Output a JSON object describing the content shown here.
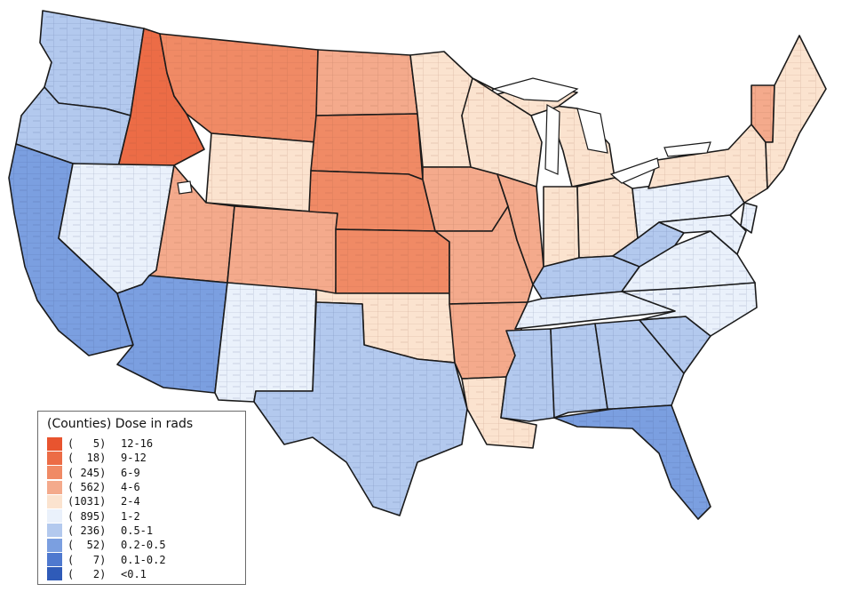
{
  "legend": {
    "title": "(Counties) Dose in rads",
    "items": [
      {
        "count": "(   5)",
        "range": "12-16",
        "color": "#e8542f"
      },
      {
        "count": "(  18)",
        "range": "9-12",
        "color": "#ec6c46"
      },
      {
        "count": "( 245)",
        "range": "6-9",
        "color": "#f08a65"
      },
      {
        "count": "( 562)",
        "range": "4-6",
        "color": "#f4aa8c"
      },
      {
        "count": "(1031)",
        "range": "2-4",
        "color": "#fbe3cf"
      },
      {
        "count": "( 895)",
        "range": "1-2",
        "color": "#eaf1fb"
      },
      {
        "count": "( 236)",
        "range": "0.5-1",
        "color": "#b3c9ee"
      },
      {
        "count": "(  52)",
        "range": "0.2-0.5",
        "color": "#7b9fe0"
      },
      {
        "count": "(   7)",
        "range": "0.1-0.2",
        "color": "#4f79cf"
      },
      {
        "count": "(   2)",
        "range": "<0.1",
        "color": "#2f5bb8"
      }
    ]
  },
  "map": {
    "border_color": "#1a1a1a",
    "water_color": "#ffffff"
  }
}
